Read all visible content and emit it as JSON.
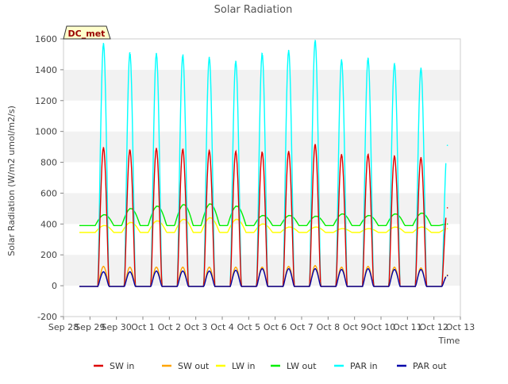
{
  "chart_data": {
    "type": "line",
    "title": "Solar Radiation",
    "xlabel": "Time",
    "ylabel": "Solar Radiation (W/m2 umol/m2/s)",
    "ylim": [
      -200,
      1600
    ],
    "yticks": [
      -200,
      0,
      200,
      400,
      600,
      800,
      1000,
      1200,
      1400,
      1600
    ],
    "xlim": [
      "2024-09-28",
      "2024-10-13"
    ],
    "xtick_labels": [
      "Sep 28",
      "Sep 29",
      "Sep 30",
      "Oct 1",
      "Oct 2",
      "Oct 3",
      "Oct 4",
      "Oct 5",
      "Oct 6",
      "Oct 7",
      "Oct 8",
      "Oct 9",
      "Oct 10",
      "Oct 11",
      "Oct 12",
      "Oct 13"
    ],
    "site_label": "DC_met",
    "grid": "horizontal bands",
    "legend_position": "bottom",
    "x": [
      "Sep 29",
      "Sep 30",
      "Oct 1",
      "Oct 2",
      "Oct 3",
      "Oct 4",
      "Oct 5",
      "Oct 6",
      "Oct 7",
      "Oct 8",
      "Oct 9",
      "Oct 10",
      "Oct 11",
      "Oct 12"
    ],
    "series": [
      {
        "name": "SW in",
        "color": "#dd0000",
        "peaks": [
          895,
          880,
          890,
          885,
          875,
          870,
          865,
          870,
          915,
          850,
          850,
          840,
          830,
          505
        ],
        "night": -5
      },
      {
        "name": "SW out",
        "color": "#ffa500",
        "peaks": [
          125,
          120,
          120,
          120,
          120,
          120,
          120,
          125,
          130,
          120,
          125,
          120,
          115,
          70
        ],
        "night": -5
      },
      {
        "name": "LW in",
        "color": "#ffff00",
        "peaks": [
          390,
          410,
          420,
          430,
          440,
          430,
          400,
          380,
          380,
          370,
          370,
          380,
          380,
          370
        ],
        "night": 345
      },
      {
        "name": "LW out",
        "color": "#00ee00",
        "peaks": [
          460,
          500,
          515,
          525,
          530,
          515,
          455,
          455,
          450,
          465,
          455,
          465,
          470,
          400
        ],
        "night": 390
      },
      {
        "name": "PAR in",
        "color": "#00ffff",
        "peaks": [
          1570,
          1510,
          1505,
          1495,
          1480,
          1455,
          1505,
          1525,
          1590,
          1465,
          1475,
          1440,
          1410,
          910
        ],
        "night": -5
      },
      {
        "name": "PAR out",
        "color": "#0000aa",
        "peaks": [
          90,
          90,
          95,
          95,
          95,
          100,
          110,
          110,
          110,
          105,
          110,
          105,
          105,
          65
        ],
        "night": -5
      }
    ]
  }
}
